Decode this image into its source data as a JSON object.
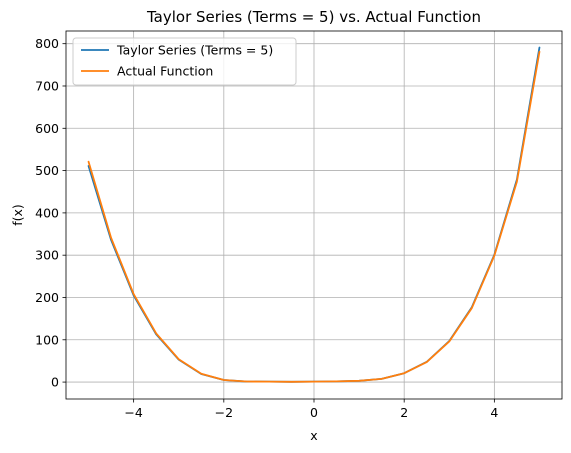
{
  "chart_data": {
    "type": "line",
    "title": "Taylor Series (Terms = 5) vs. Actual Function",
    "xlabel": "x",
    "ylabel": "f(x)",
    "xlim": [
      -5.5,
      5.5
    ],
    "ylim": [
      -40,
      830
    ],
    "xticks": [
      -4,
      -2,
      0,
      2,
      4
    ],
    "xtick_labels": [
      "−4",
      "−2",
      "0",
      "2",
      "4"
    ],
    "yticks": [
      0,
      100,
      200,
      300,
      400,
      500,
      600,
      700,
      800
    ],
    "ytick_labels": [
      "0",
      "100",
      "200",
      "300",
      "400",
      "500",
      "600",
      "700",
      "800"
    ],
    "grid": true,
    "legend_position": "top-left",
    "series": [
      {
        "name": "Taylor Series (Terms = 5)",
        "color": "#1f77b4",
        "x": [
          -5,
          -4.5,
          -4,
          -3.5,
          -3,
          -2.5,
          -2,
          -1.5,
          -1,
          -0.5,
          0,
          0.5,
          1,
          1.5,
          2,
          2.5,
          3,
          3.5,
          4,
          4.5,
          5
        ],
        "y": [
          511,
          336,
          205,
          113,
          53,
          19.2,
          5,
          1.25,
          1.0,
          0.6,
          1.0,
          1.6,
          3.0,
          7.6,
          21,
          47.8,
          97,
          177,
          301,
          479,
          791
        ]
      },
      {
        "name": "Actual Function",
        "color": "#ff7f0e",
        "x": [
          -5,
          -4.5,
          -4,
          -3.5,
          -3,
          -2.5,
          -2,
          -1.5,
          -1,
          -0.5,
          0,
          0.5,
          1,
          1.5,
          2,
          2.5,
          3,
          3.5,
          4,
          4.5,
          5
        ],
        "y": [
          521,
          341,
          208,
          115,
          54,
          19.6,
          5,
          1.3,
          1.0,
          0.6,
          1.0,
          1.6,
          3.0,
          7.5,
          21,
          47.4,
          96,
          175,
          299,
          474,
          781
        ]
      }
    ]
  }
}
